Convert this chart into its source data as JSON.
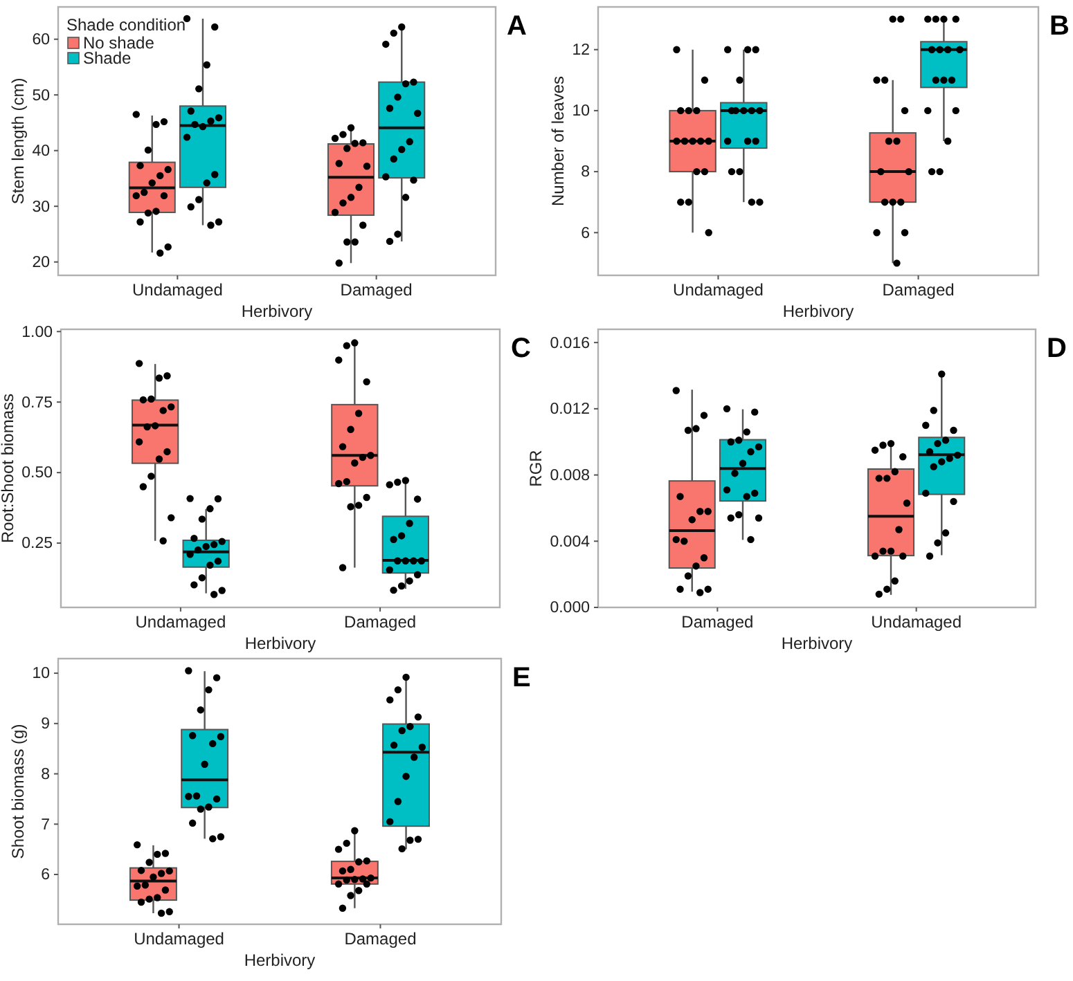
{
  "chart_data": [
    {
      "type": "box",
      "title": "A",
      "xlabel": "Herbivory",
      "ylabel": "Stem length (cm)",
      "categories": [
        "Undamaged",
        "Damaged"
      ],
      "ylim": [
        17.6,
        65.8
      ],
      "yticks": [
        20,
        30,
        40,
        50,
        60
      ],
      "legend": "top left",
      "legend_title": "Shade condition",
      "series": [
        {
          "name": "No shade",
          "color": "#f8766d",
          "boxes": [
            {
              "low": 21.7,
              "q1": 28.9,
              "median": 33.3,
              "q3": 37.9,
              "high": 46.3
            },
            {
              "low": 19.8,
              "q1": 28.4,
              "median": 35.2,
              "q3": 41.2,
              "high": 44.1
            }
          ]
        },
        {
          "name": "Shade",
          "color": "#00bfc4",
          "boxes": [
            {
              "low": 26.6,
              "q1": 33.4,
              "median": 44.5,
              "q3": 48.0,
              "high": 63.7
            },
            {
              "low": 23.7,
              "q1": 35.1,
              "median": 44.1,
              "q3": 52.3,
              "high": 62.2
            }
          ]
        },
        {
          "type": "scatter",
          "color": "#000000",
          "marker": "circle",
          "x": [
            "Undamaged",
            "Undamaged",
            "Undamaged",
            "Undamaged",
            "Undamaged",
            "Undamaged",
            "Undamaged",
            "Undamaged",
            "Undamaged",
            "Undamaged",
            "Undamaged",
            "Undamaged",
            "Undamaged",
            "Undamaged",
            "Undamaged",
            "Undamaged",
            "Damaged",
            "Damaged",
            "Damaged",
            "Damaged",
            "Damaged",
            "Damaged",
            "Damaged",
            "Damaged",
            "Damaged",
            "Damaged",
            "Damaged",
            "Damaged",
            "Damaged",
            "Damaged",
            "Damaged",
            "Damaged"
          ],
          "values": [
            46.5,
            45.2,
            44.7,
            40.1,
            37.3,
            36.6,
            35.5,
            34.2,
            32.5,
            31.9,
            31.9,
            29.1,
            28.8,
            27.2,
            22.7,
            21.6,
            44.1,
            42.9,
            42.2,
            41.4,
            41.3,
            40.4,
            37.7,
            37.2,
            33.4,
            31.6,
            30.6,
            28.9,
            26.6,
            23.6,
            23.6,
            19.8
          ]
        },
        {
          "type": "scatter",
          "color": "#000000",
          "marker": "circle",
          "x": [
            "Undamaged",
            "Undamaged",
            "Undamaged",
            "Undamaged",
            "Undamaged",
            "Undamaged",
            "Undamaged",
            "Undamaged",
            "Undamaged",
            "Undamaged",
            "Undamaged",
            "Undamaged",
            "Undamaged",
            "Undamaged",
            "Undamaged",
            "Undamaged",
            "Damaged",
            "Damaged",
            "Damaged",
            "Damaged",
            "Damaged",
            "Damaged",
            "Damaged",
            "Damaged",
            "Damaged",
            "Damaged",
            "Damaged",
            "Damaged",
            "Damaged",
            "Damaged",
            "Damaged",
            "Damaged"
          ],
          "values": [
            63.7,
            62.2,
            55.4,
            51.1,
            47.1,
            45.9,
            45.3,
            44.3,
            44.7,
            42.4,
            35.7,
            34.2,
            31.2,
            29.9,
            27.2,
            26.6,
            62.2,
            61.1,
            59.1,
            52.3,
            52.0,
            49.6,
            47.6,
            46.7,
            41.6,
            40.2,
            38.5,
            35.3,
            34.7,
            31.6,
            25.0,
            23.7
          ]
        }
      ]
    },
    {
      "type": "box",
      "title": "B",
      "xlabel": "Herbivory",
      "ylabel": "Number of leaves",
      "categories": [
        "Undamaged",
        "Damaged"
      ],
      "ylim": [
        4.6,
        13.4
      ],
      "yticks": [
        6,
        8,
        10,
        12
      ],
      "series": [
        {
          "color": "#f8766d",
          "boxes": [
            {
              "low": 6,
              "q1": 8,
              "median": 9,
              "q3": 10,
              "high": 12
            },
            {
              "low": 5,
              "q1": 7,
              "median": 8,
              "q3": 9.27,
              "high": 11
            }
          ]
        },
        {
          "color": "#00bfc4",
          "boxes": [
            {
              "low": 7,
              "q1": 8.77,
              "median": 10,
              "q3": 10.26,
              "high": 12
            },
            {
              "low": 9,
              "q1": 10.76,
              "median": 12,
              "q3": 12.26,
              "high": 13
            }
          ]
        },
        {
          "type": "scatter",
          "color": "#000000",
          "marker": "circle",
          "x": [
            "Undamaged",
            "Undamaged",
            "Undamaged",
            "Undamaged",
            "Undamaged",
            "Undamaged",
            "Undamaged",
            "Undamaged",
            "Undamaged",
            "Undamaged",
            "Undamaged",
            "Undamaged",
            "Undamaged",
            "Undamaged",
            "Undamaged",
            "Damaged",
            "Damaged",
            "Damaged",
            "Damaged",
            "Damaged",
            "Damaged",
            "Damaged",
            "Damaged",
            "Damaged",
            "Damaged",
            "Damaged",
            "Damaged",
            "Damaged",
            "Damaged",
            "Damaged"
          ],
          "values": [
            12,
            11,
            10,
            10,
            10,
            9,
            9,
            9,
            9,
            9,
            8,
            8,
            7,
            7,
            6,
            13,
            13,
            11,
            11,
            10,
            9,
            9,
            8,
            8,
            7,
            7,
            7,
            6,
            6,
            5
          ]
        },
        {
          "type": "scatter",
          "color": "#000000",
          "marker": "circle",
          "x": [
            "Undamaged",
            "Undamaged",
            "Undamaged",
            "Undamaged",
            "Undamaged",
            "Undamaged",
            "Undamaged",
            "Undamaged",
            "Undamaged",
            "Undamaged",
            "Undamaged",
            "Undamaged",
            "Undamaged",
            "Undamaged",
            "Undamaged",
            "Undamaged",
            "Damaged",
            "Damaged",
            "Damaged",
            "Damaged",
            "Damaged",
            "Damaged",
            "Damaged",
            "Damaged",
            "Damaged",
            "Damaged",
            "Damaged",
            "Damaged",
            "Damaged",
            "Damaged",
            "Damaged",
            "Damaged"
          ],
          "values": [
            12,
            12,
            12,
            11,
            10,
            10,
            10,
            10,
            10,
            9,
            9,
            9,
            8,
            8,
            7,
            7,
            13,
            13,
            13,
            13,
            12,
            12,
            12,
            12,
            11,
            11,
            11,
            10,
            10,
            9,
            8,
            8
          ]
        }
      ]
    },
    {
      "type": "box",
      "title": "C",
      "xlabel": "Herbivory",
      "ylabel": "Root:Shoot biomass",
      "categories": [
        "Undamaged",
        "Damaged"
      ],
      "ylim": [
        0.022,
        1.008
      ],
      "yticks": [
        {
          "value": 0.25,
          "label": "0.25"
        },
        {
          "value": 0.5,
          "label": "0.50"
        },
        {
          "value": 0.75,
          "label": "0.75"
        },
        {
          "value": 1,
          "label": "1.00"
        }
      ],
      "series": [
        {
          "color": "#f8766d",
          "boxes": [
            {
              "low": 0.258,
              "q1": 0.533,
              "median": 0.668,
              "q3": 0.757,
              "high": 0.885
            },
            {
              "low": 0.163,
              "q1": 0.453,
              "median": 0.561,
              "q3": 0.741,
              "high": 0.959
            }
          ]
        },
        {
          "color": "#00bfc4",
          "boxes": [
            {
              "low": 0.072,
              "q1": 0.165,
              "median": 0.219,
              "q3": 0.26,
              "high": 0.371
            },
            {
              "low": 0.088,
              "q1": 0.144,
              "median": 0.189,
              "q3": 0.345,
              "high": 0.473
            }
          ]
        },
        {
          "type": "scatter",
          "color": "#000000",
          "marker": "circle",
          "x": [
            "Undamaged",
            "Undamaged",
            "Undamaged",
            "Undamaged",
            "Undamaged",
            "Undamaged",
            "Undamaged",
            "Undamaged",
            "Undamaged",
            "Undamaged",
            "Undamaged",
            "Undamaged",
            "Undamaged",
            "Undamaged",
            "Undamaged",
            "Undamaged",
            "Damaged",
            "Damaged",
            "Damaged",
            "Damaged",
            "Damaged",
            "Damaged",
            "Damaged",
            "Damaged",
            "Damaged",
            "Damaged",
            "Damaged",
            "Damaged",
            "Damaged",
            "Damaged",
            "Damaged",
            "Damaged"
          ],
          "values": [
            0.887,
            0.843,
            0.835,
            0.761,
            0.758,
            0.733,
            0.72,
            0.666,
            0.662,
            0.609,
            0.574,
            0.548,
            0.487,
            0.45,
            0.34,
            0.258,
            0.96,
            0.95,
            0.899,
            0.822,
            0.71,
            0.653,
            0.592,
            0.561,
            0.554,
            0.534,
            0.468,
            0.461,
            0.412,
            0.384,
            0.379,
            0.163
          ]
        },
        {
          "type": "scatter",
          "color": "#000000",
          "marker": "circle",
          "x": [
            "Undamaged",
            "Undamaged",
            "Undamaged",
            "Undamaged",
            "Undamaged",
            "Undamaged",
            "Undamaged",
            "Undamaged",
            "Undamaged",
            "Undamaged",
            "Undamaged",
            "Undamaged",
            "Undamaged",
            "Undamaged",
            "Undamaged",
            "Undamaged",
            "Damaged",
            "Damaged",
            "Damaged",
            "Damaged",
            "Damaged",
            "Damaged",
            "Damaged",
            "Damaged",
            "Damaged",
            "Damaged",
            "Damaged",
            "Damaged",
            "Damaged",
            "Damaged",
            "Damaged",
            "Damaged"
          ],
          "values": [
            0.408,
            0.407,
            0.372,
            0.335,
            0.267,
            0.256,
            0.245,
            0.238,
            0.226,
            0.21,
            0.186,
            0.172,
            0.127,
            0.102,
            0.082,
            0.068,
            0.472,
            0.466,
            0.457,
            0.406,
            0.32,
            0.276,
            0.263,
            0.187,
            0.187,
            0.187,
            0.187,
            0.155,
            0.138,
            0.116,
            0.098,
            0.083
          ]
        }
      ]
    },
    {
      "type": "box",
      "title": "D",
      "xlabel": "Herbivory",
      "ylabel": "RGR",
      "categories": [
        "Damaged",
        "Undamaged"
      ],
      "ylim": [
        0,
        0.0168
      ],
      "yticks": [
        {
          "value": 0,
          "label": "0.000"
        },
        {
          "value": 0.004,
          "label": "0.004"
        },
        {
          "value": 0.008,
          "label": "0.008"
        },
        {
          "value": 0.012,
          "label": "0.012"
        },
        {
          "value": 0.016,
          "label": "0.016"
        }
      ],
      "series": [
        {
          "color": "#f8766d",
          "boxes": [
            {
              "low": 0.00095,
              "q1": 0.00238,
              "median": 0.00464,
              "q3": 0.00764,
              "high": 0.01315
            },
            {
              "low": 0.00076,
              "q1": 0.00313,
              "median": 0.00551,
              "q3": 0.00836,
              "high": 0.0098
            }
          ]
        },
        {
          "color": "#00bfc4",
          "boxes": [
            {
              "low": 0.00408,
              "q1": 0.00643,
              "median": 0.00839,
              "q3": 0.01013,
              "high": 0.01197
            },
            {
              "low": 0.00316,
              "q1": 0.00683,
              "median": 0.00923,
              "q3": 0.01027,
              "high": 0.01413
            }
          ]
        },
        {
          "type": "scatter",
          "color": "#000000",
          "marker": "circle",
          "x": [
            "Damaged",
            "Damaged",
            "Damaged",
            "Damaged",
            "Damaged",
            "Damaged",
            "Damaged",
            "Damaged",
            "Damaged",
            "Damaged",
            "Damaged",
            "Damaged",
            "Damaged",
            "Damaged",
            "Damaged",
            "Damaged",
            "Undamaged",
            "Undamaged",
            "Undamaged",
            "Undamaged",
            "Undamaged",
            "Undamaged",
            "Undamaged",
            "Undamaged",
            "Undamaged",
            "Undamaged",
            "Undamaged",
            "Undamaged",
            "Undamaged",
            "Undamaged",
            "Undamaged",
            "Undamaged"
          ],
          "values": [
            0.0131,
            0.0116,
            0.0108,
            0.0107,
            0.0067,
            0.0058,
            0.0058,
            0.0053,
            0.004,
            0.0041,
            0.003,
            0.0025,
            0.0019,
            0.0011,
            0.0011,
            0.0009,
            0.0099,
            0.0098,
            0.0095,
            0.0091,
            0.0082,
            0.0078,
            0.0078,
            0.0063,
            0.0047,
            0.0034,
            0.0034,
            0.0031,
            0.0031,
            0.0016,
            0.0011,
            0.0008
          ]
        },
        {
          "type": "scatter",
          "color": "#000000",
          "marker": "circle",
          "x": [
            "Damaged",
            "Damaged",
            "Damaged",
            "Damaged",
            "Damaged",
            "Damaged",
            "Damaged",
            "Damaged",
            "Damaged",
            "Damaged",
            "Damaged",
            "Damaged",
            "Damaged",
            "Damaged",
            "Damaged",
            "Damaged",
            "Undamaged",
            "Undamaged",
            "Undamaged",
            "Undamaged",
            "Undamaged",
            "Undamaged",
            "Undamaged",
            "Undamaged",
            "Undamaged",
            "Undamaged",
            "Undamaged",
            "Undamaged",
            "Undamaged",
            "Undamaged",
            "Undamaged",
            "Undamaged"
          ],
          "values": [
            0.012,
            0.0118,
            0.0106,
            0.0101,
            0.01,
            0.0097,
            0.0094,
            0.0087,
            0.0081,
            0.0071,
            0.0069,
            0.0067,
            0.0056,
            0.0054,
            0.0054,
            0.0041,
            0.0141,
            0.0119,
            0.011,
            0.0107,
            0.0101,
            0.0099,
            0.0094,
            0.0092,
            0.009,
            0.0088,
            0.0085,
            0.0069,
            0.0064,
            0.0045,
            0.0039,
            0.0031
          ]
        }
      ]
    },
    {
      "type": "box",
      "title": "E",
      "xlabel": "Herbivory",
      "ylabel": "Shoot biomass (g)",
      "categories": [
        "Undamaged",
        "Damaged"
      ],
      "ylim": [
        5.01,
        10.29
      ],
      "yticks": [
        6,
        7,
        8,
        9,
        10
      ],
      "series": [
        {
          "color": "#f8766d",
          "boxes": [
            {
              "low": 5.23,
              "q1": 5.49,
              "median": 5.87,
              "q3": 6.13,
              "high": 6.58
            },
            {
              "low": 5.33,
              "q1": 5.81,
              "median": 5.93,
              "q3": 6.26,
              "high": 6.87
            }
          ]
        },
        {
          "color": "#00bfc4",
          "boxes": [
            {
              "low": 6.71,
              "q1": 7.33,
              "median": 7.88,
              "q3": 8.88,
              "high": 10.04
            },
            {
              "low": 6.5,
              "q1": 6.96,
              "median": 8.43,
              "q3": 8.99,
              "high": 9.91
            }
          ]
        },
        {
          "type": "scatter",
          "color": "#000000",
          "marker": "circle",
          "x": [
            "Undamaged",
            "Undamaged",
            "Undamaged",
            "Undamaged",
            "Undamaged",
            "Undamaged",
            "Undamaged",
            "Undamaged",
            "Undamaged",
            "Undamaged",
            "Undamaged",
            "Undamaged",
            "Undamaged",
            "Undamaged",
            "Undamaged",
            "Undamaged",
            "Damaged",
            "Damaged",
            "Damaged",
            "Damaged",
            "Damaged",
            "Damaged",
            "Damaged",
            "Damaged",
            "Damaged",
            "Damaged",
            "Damaged",
            "Damaged",
            "Damaged",
            "Damaged",
            "Damaged",
            "Damaged"
          ],
          "values": [
            6.59,
            6.42,
            6.4,
            6.24,
            6.08,
            6.07,
            6.02,
            5.95,
            5.79,
            5.77,
            5.69,
            5.54,
            5.51,
            5.45,
            5.26,
            5.23,
            6.87,
            6.62,
            6.5,
            6.27,
            6.25,
            6.1,
            6.07,
            5.93,
            5.91,
            5.9,
            5.89,
            5.81,
            5.81,
            5.68,
            5.58,
            5.33
          ]
        },
        {
          "type": "scatter",
          "color": "#000000",
          "marker": "circle",
          "x": [
            "Undamaged",
            "Undamaged",
            "Undamaged",
            "Undamaged",
            "Undamaged",
            "Undamaged",
            "Undamaged",
            "Undamaged",
            "Undamaged",
            "Undamaged",
            "Undamaged",
            "Undamaged",
            "Undamaged",
            "Undamaged",
            "Undamaged",
            "Undamaged",
            "Damaged",
            "Damaged",
            "Damaged",
            "Damaged",
            "Damaged",
            "Damaged",
            "Damaged",
            "Damaged",
            "Damaged",
            "Damaged",
            "Damaged",
            "Damaged",
            "Damaged",
            "Damaged",
            "Damaged"
          ],
          "values": [
            10.05,
            9.91,
            9.67,
            9.27,
            8.76,
            8.74,
            8.6,
            8.19,
            7.56,
            7.55,
            7.5,
            7.34,
            7.3,
            7.02,
            6.75,
            6.71,
            9.92,
            9.67,
            9.47,
            9.13,
            8.94,
            8.86,
            8.57,
            8.53,
            8.33,
            7.95,
            7.45,
            7.05,
            6.7,
            6.68,
            6.51
          ]
        }
      ]
    }
  ]
}
